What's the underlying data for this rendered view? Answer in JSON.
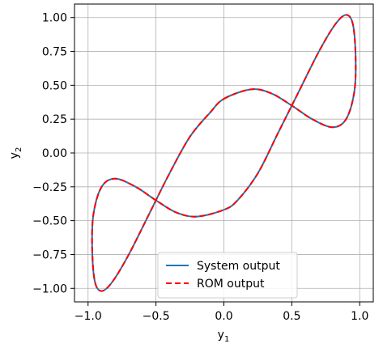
{
  "chart_data": {
    "type": "line",
    "title": "",
    "xlabel": "y",
    "xlabel_sub": "1",
    "ylabel": "y",
    "ylabel_sub": "2",
    "xlim": [
      -1.1,
      1.1
    ],
    "ylim": [
      -1.1,
      1.1
    ],
    "grid": true,
    "legend_position": "bottom-center",
    "x_ticks": [
      -1.0,
      -0.5,
      0.0,
      0.5,
      1.0
    ],
    "x_tick_labels": [
      "−1.0",
      "−0.5",
      "0.0",
      "0.5",
      "1.0"
    ],
    "y_ticks": [
      1.0,
      0.75,
      0.5,
      0.25,
      0.0,
      -0.25,
      -0.5,
      -0.75,
      -1.0
    ],
    "y_tick_labels": [
      "1.00",
      "0.75",
      "0.50",
      "0.25",
      "0.00",
      "−0.25",
      "−0.50",
      "−0.75",
      "−1.00"
    ],
    "series": [
      {
        "name": "System output",
        "color": "#1f77b4",
        "style": "solid",
        "curve": "x = sin(t), y = sin(2t + 0.4 sin t)... approximated closed loop",
        "points": [
          [
            0.0,
            0.4
          ],
          [
            0.2,
            0.47
          ],
          [
            0.35,
            0.44
          ],
          [
            0.5,
            0.35
          ],
          [
            0.65,
            0.25
          ],
          [
            0.8,
            0.19
          ],
          [
            0.9,
            0.25
          ],
          [
            0.96,
            0.45
          ],
          [
            0.97,
            0.7
          ],
          [
            0.95,
            0.95
          ],
          [
            0.9,
            1.02
          ],
          [
            0.82,
            0.95
          ],
          [
            0.7,
            0.75
          ],
          [
            0.55,
            0.45
          ],
          [
            0.4,
            0.15
          ],
          [
            0.25,
            -0.15
          ],
          [
            0.1,
            -0.35
          ],
          [
            0.0,
            -0.42
          ],
          [
            -0.2,
            -0.47
          ],
          [
            -0.35,
            -0.44
          ],
          [
            -0.5,
            -0.35
          ],
          [
            -0.65,
            -0.25
          ],
          [
            -0.8,
            -0.19
          ],
          [
            -0.9,
            -0.25
          ],
          [
            -0.96,
            -0.45
          ],
          [
            -0.97,
            -0.7
          ],
          [
            -0.95,
            -0.95
          ],
          [
            -0.9,
            -1.02
          ],
          [
            -0.82,
            -0.95
          ],
          [
            -0.7,
            -0.75
          ],
          [
            -0.55,
            -0.45
          ],
          [
            -0.4,
            -0.15
          ],
          [
            -0.25,
            0.12
          ],
          [
            -0.1,
            0.3
          ],
          [
            0.0,
            0.4
          ]
        ]
      },
      {
        "name": "ROM output",
        "color": "#ff0000",
        "style": "dashed",
        "same_as": "System output"
      }
    ]
  }
}
